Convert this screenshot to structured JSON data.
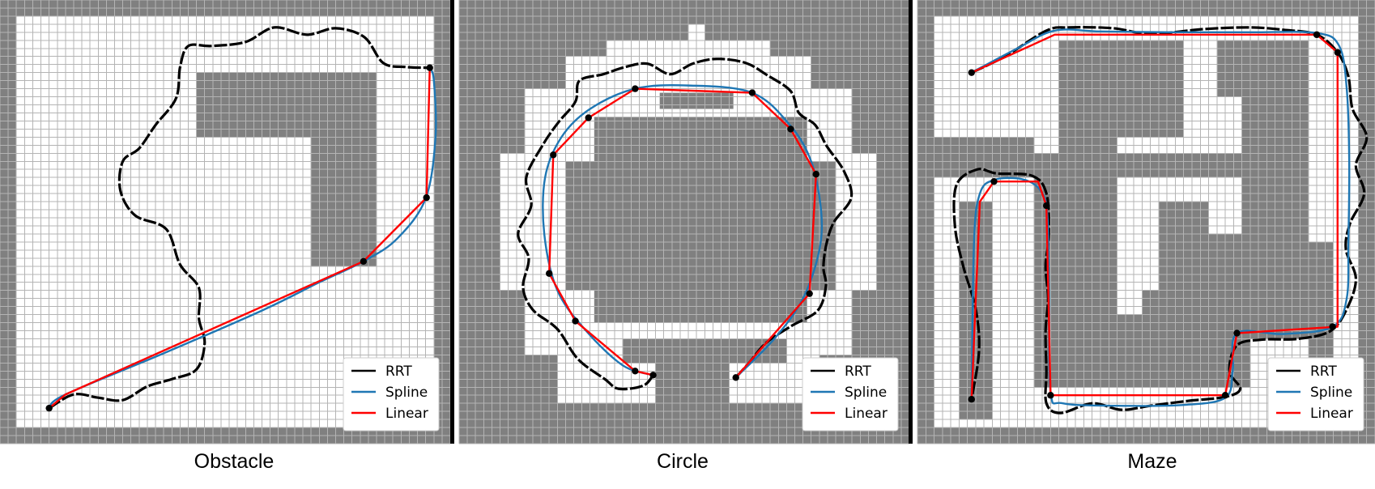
{
  "colors": {
    "obstacle": "#808080",
    "free": "#ffffff",
    "grid": "#b4b4b4",
    "rrt": "#000000",
    "spline": "#1f77b4",
    "linear": "#ff0000",
    "border": "#000000"
  },
  "legend_labels": {
    "rrt": "RRT",
    "spline": "Spline",
    "linear": "Linear"
  },
  "chart_data": [
    {
      "type": "line",
      "title": "Obstacle",
      "grid": true,
      "legend_position": "bottom-right",
      "axis_range": {
        "x": [
          0,
          55
        ],
        "y": [
          0,
          55
        ]
      },
      "map": {
        "free": [
          [
            2,
            2,
            53,
            53
          ]
        ],
        "obstacles": [
          [
            24,
            9,
            46,
            17
          ],
          [
            38,
            17,
            46,
            33
          ]
        ]
      },
      "waypoints": [
        [
          6,
          50.6
        ],
        [
          52.5,
          8.4
        ],
        [
          52.1,
          24.5
        ],
        [
          44.4,
          32.4
        ]
      ],
      "linear": [
        [
          6,
          50.6
        ],
        [
          8,
          48.9
        ],
        [
          44.4,
          32.4
        ],
        [
          52.1,
          24.5
        ],
        [
          52.5,
          8.4
        ]
      ],
      "spline": [
        [
          6,
          50.6
        ],
        [
          8,
          48.9
        ],
        [
          20,
          43.8
        ],
        [
          32,
          38.5
        ],
        [
          39,
          35
        ],
        [
          44.4,
          32.4
        ],
        [
          48.5,
          29.6
        ],
        [
          52,
          24.6
        ],
        [
          53.2,
          17
        ],
        [
          53,
          10
        ],
        [
          52.5,
          8.4
        ]
      ],
      "rrt": [
        [
          6,
          50.6
        ],
        [
          9,
          48.9
        ],
        [
          12,
          49.3
        ],
        [
          15,
          49.6
        ],
        [
          18,
          47.9
        ],
        [
          21,
          47
        ],
        [
          24,
          45.8
        ],
        [
          25,
          42.5
        ],
        [
          24.3,
          39.5
        ],
        [
          24.3,
          35.7
        ],
        [
          22,
          32.8
        ],
        [
          20.3,
          28.4
        ],
        [
          16.5,
          26.7
        ],
        [
          14.7,
          23.6
        ],
        [
          15,
          20
        ],
        [
          17,
          18.4
        ],
        [
          19,
          15.5
        ],
        [
          21.5,
          12.2
        ],
        [
          22,
          8.3
        ],
        [
          23,
          5.7
        ],
        [
          25.8,
          5.7
        ],
        [
          30,
          5.2
        ],
        [
          33.5,
          3.4
        ],
        [
          37.5,
          4.3
        ],
        [
          41,
          3.5
        ],
        [
          44.5,
          4.6
        ],
        [
          46.8,
          7.8
        ],
        [
          49.5,
          8.3
        ],
        [
          52.5,
          8.4
        ]
      ]
    },
    {
      "type": "line",
      "title": "Circle",
      "grid": true,
      "legend_position": "bottom-right",
      "axis_range": {
        "x": [
          0,
          55
        ],
        "y": [
          0,
          55
        ]
      },
      "map": {
        "free": [
          [
            28,
            3,
            30,
            5
          ],
          [
            18,
            5,
            38,
            8
          ],
          [
            13,
            7,
            43,
            12
          ],
          [
            8,
            11,
            48,
            20
          ],
          [
            5,
            19,
            51,
            36
          ],
          [
            8,
            35,
            48,
            44
          ],
          [
            12,
            43,
            24,
            50
          ],
          [
            33,
            43,
            44,
            50
          ]
        ],
        "obstacles": [
          [
            24.5,
            11.5,
            33.5,
            13.5
          ],
          [
            16.5,
            14.5,
            42.5,
            40
          ],
          [
            13,
            20,
            46,
            36
          ],
          [
            20,
            42,
            40,
            45
          ],
          [
            24,
            45,
            33,
            55
          ]
        ]
      },
      "waypoints": [
        [
          21.5,
          11
        ],
        [
          35.8,
          11.5
        ],
        [
          15.8,
          14.6
        ],
        [
          40.5,
          16
        ],
        [
          11.5,
          19.2
        ],
        [
          43.6,
          21.6
        ],
        [
          11,
          33.9
        ],
        [
          42.8,
          36.4
        ],
        [
          14.2,
          39.8
        ],
        [
          21.5,
          46
        ],
        [
          23.7,
          46.5
        ],
        [
          33.8,
          46.8
        ]
      ],
      "linear": [
        [
          23.7,
          46.5
        ],
        [
          21.5,
          46
        ],
        [
          14.2,
          39.8
        ],
        [
          11,
          33.9
        ],
        [
          11.5,
          19.2
        ],
        [
          15.8,
          14.6
        ],
        [
          21.5,
          11
        ],
        [
          35.8,
          11.5
        ],
        [
          40.5,
          16
        ],
        [
          43.6,
          21.6
        ],
        [
          42.8,
          36.4
        ],
        [
          33.8,
          46.8
        ]
      ],
      "spline": [
        [
          23.7,
          46.5
        ],
        [
          20,
          45.3
        ],
        [
          15.5,
          41
        ],
        [
          12,
          36
        ],
        [
          10.4,
          29
        ],
        [
          10.5,
          22
        ],
        [
          12.5,
          17
        ],
        [
          16,
          13.5
        ],
        [
          21.5,
          11
        ],
        [
          28,
          10.6
        ],
        [
          35.8,
          11.5
        ],
        [
          40.4,
          15.5
        ],
        [
          43,
          20
        ],
        [
          44.2,
          26
        ],
        [
          44,
          31
        ],
        [
          42,
          37
        ],
        [
          38.5,
          42
        ],
        [
          33.8,
          46.8
        ]
      ],
      "rrt": [
        [
          23.7,
          46.5
        ],
        [
          22.5,
          47.8
        ],
        [
          19.5,
          48.2
        ],
        [
          17.8,
          47
        ],
        [
          14.5,
          44.5
        ],
        [
          12,
          40.8
        ],
        [
          9,
          38.4
        ],
        [
          7.8,
          35.6
        ],
        [
          8.5,
          32
        ],
        [
          7.2,
          29
        ],
        [
          8.8,
          25.5
        ],
        [
          8.2,
          22
        ],
        [
          10.2,
          18
        ],
        [
          12.1,
          15.2
        ],
        [
          14.2,
          12.6
        ],
        [
          14.7,
          10
        ],
        [
          17.6,
          9.2
        ],
        [
          20.3,
          8.3
        ],
        [
          23,
          7.9
        ],
        [
          25.8,
          9.2
        ],
        [
          28.5,
          7.9
        ],
        [
          31.5,
          7.3
        ],
        [
          35,
          7.8
        ],
        [
          37.6,
          9.3
        ],
        [
          40.5,
          11.3
        ],
        [
          41.5,
          14
        ],
        [
          43.5,
          15.5
        ],
        [
          44.9,
          18.1
        ],
        [
          47,
          21.2
        ],
        [
          47.9,
          24.5
        ],
        [
          45.8,
          27.5
        ],
        [
          44.9,
          30.1
        ],
        [
          44.5,
          33.1
        ],
        [
          44.8,
          35.5
        ],
        [
          43.8,
          38.5
        ],
        [
          40.6,
          40.4
        ],
        [
          37.5,
          42.5
        ],
        [
          35.4,
          45
        ],
        [
          33.8,
          46.8
        ]
      ]
    },
    {
      "type": "line",
      "title": "Maze",
      "grid": true,
      "legend_position": "bottom-right",
      "axis_range": {
        "x": [
          0,
          55
        ],
        "y": [
          0,
          55
        ]
      },
      "map": {
        "free": [
          [
            2,
            2,
            53,
            53
          ]
        ],
        "obstacles": [
          [
            2,
            17,
            14,
            22
          ],
          [
            17,
            5,
            24,
            48
          ],
          [
            14,
            19,
            24,
            48
          ],
          [
            5,
            25,
            9,
            52
          ],
          [
            24,
            19,
            41,
            22
          ],
          [
            24,
            39,
            40,
            48
          ],
          [
            24,
            5,
            32,
            17
          ],
          [
            36,
            5,
            47,
            12
          ],
          [
            39,
            12,
            47,
            30
          ],
          [
            27,
            36,
            47,
            42
          ],
          [
            47,
            30,
            50,
            52
          ],
          [
            29,
            25,
            35,
            36
          ],
          [
            35,
            29,
            47,
            36
          ]
        ]
      },
      "waypoints": [
        [
          6.5,
          9
        ],
        [
          48,
          4.3
        ],
        [
          50.5,
          6.5
        ],
        [
          9.2,
          22.5
        ],
        [
          15.5,
          25.5
        ],
        [
          6.5,
          49.5
        ],
        [
          16,
          49
        ],
        [
          49.9,
          40.5
        ],
        [
          38.4,
          41.3
        ],
        [
          37,
          49
        ]
      ],
      "linear": [
        [
          6.5,
          9
        ],
        [
          16.5,
          4.3
        ],
        [
          48,
          4.3
        ],
        [
          50.5,
          6.5
        ],
        [
          50.5,
          40.5
        ],
        [
          38.4,
          41.3
        ],
        [
          37,
          49
        ],
        [
          16,
          49
        ],
        [
          15.5,
          25.5
        ],
        [
          14.5,
          22.5
        ],
        [
          9.2,
          22.5
        ],
        [
          7.5,
          25
        ],
        [
          6.5,
          49.5
        ]
      ],
      "spline": [
        [
          6.5,
          9
        ],
        [
          12,
          6
        ],
        [
          16.5,
          3.8
        ],
        [
          22,
          3.9
        ],
        [
          30,
          4
        ],
        [
          40,
          4
        ],
        [
          48,
          4.1
        ],
        [
          50.7,
          5.7
        ],
        [
          51.6,
          11
        ],
        [
          51.9,
          20
        ],
        [
          51.8,
          30
        ],
        [
          51.6,
          37
        ],
        [
          49.9,
          40.5
        ],
        [
          44,
          41.4
        ],
        [
          38.4,
          41.3
        ],
        [
          37.9,
          46
        ],
        [
          37,
          49.3
        ],
        [
          32,
          50.2
        ],
        [
          24,
          50.3
        ],
        [
          17.5,
          50
        ],
        [
          16,
          48.5
        ],
        [
          15.8,
          36
        ],
        [
          15.6,
          26.5
        ],
        [
          14.7,
          23.5
        ],
        [
          12.5,
          22.2
        ],
        [
          9.2,
          22.3
        ],
        [
          7.5,
          24
        ],
        [
          6.8,
          30
        ],
        [
          6.5,
          49.5
        ]
      ],
      "rrt": [
        [
          6.5,
          9
        ],
        [
          10.5,
          7
        ],
        [
          15.5,
          3.8
        ],
        [
          18.2,
          3.4
        ],
        [
          23.5,
          3.5
        ],
        [
          28,
          4.2
        ],
        [
          34.5,
          3.6
        ],
        [
          40,
          3.4
        ],
        [
          44,
          3.7
        ],
        [
          48,
          4.3
        ],
        [
          50.5,
          6.5
        ],
        [
          51.8,
          9.5
        ],
        [
          52.3,
          13.5
        ],
        [
          54,
          17
        ],
        [
          52.7,
          20.5
        ],
        [
          53.7,
          24
        ],
        [
          52,
          27.7
        ],
        [
          51.5,
          30.9
        ],
        [
          52.7,
          34.5
        ],
        [
          51.7,
          38.1
        ],
        [
          49.7,
          41
        ],
        [
          45.8,
          42
        ],
        [
          41.5,
          42.1
        ],
        [
          38.4,
          42.8
        ],
        [
          37.5,
          46
        ],
        [
          38.8,
          48.2
        ],
        [
          37,
          49.2
        ],
        [
          32.5,
          49.7
        ],
        [
          28,
          50.3
        ],
        [
          24.5,
          50.8
        ],
        [
          21,
          50
        ],
        [
          17.2,
          51.2
        ],
        [
          15.5,
          50
        ],
        [
          15.5,
          46
        ],
        [
          15.4,
          41
        ],
        [
          15.7,
          37
        ],
        [
          15.4,
          33
        ],
        [
          15.8,
          29
        ],
        [
          15.5,
          24
        ],
        [
          13.8,
          21.8
        ],
        [
          9.5,
          21.5
        ],
        [
          7.2,
          21
        ],
        [
          4.7,
          22.9
        ],
        [
          4.5,
          28
        ],
        [
          5.5,
          33
        ],
        [
          7,
          38.3
        ],
        [
          7.4,
          43.5
        ],
        [
          6.5,
          49.5
        ]
      ]
    }
  ],
  "captions": [
    "Obstacle",
    "Circle",
    "Maze"
  ]
}
